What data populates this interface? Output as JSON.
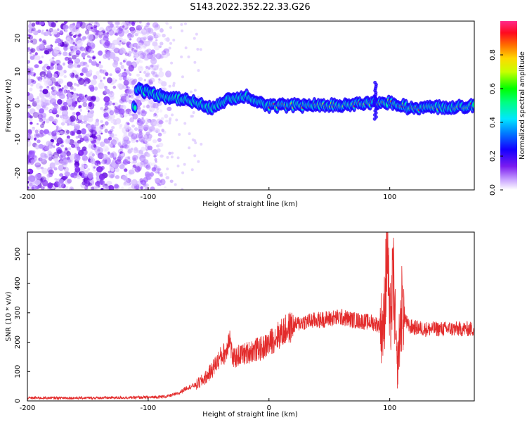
{
  "title": "S143.2022.352.22.33.G26",
  "colors": {
    "snr_line": "#e32b2b",
    "frame": "#000000"
  },
  "chart_data": [
    {
      "type": "heatmap",
      "title": "S143.2022.352.22.33.G26",
      "xlabel": "Height of straight line (km)",
      "ylabel": "Frequency (Hz)",
      "xlim": [
        -200,
        170
      ],
      "ylim": [
        -25,
        25
      ],
      "xticks": [
        -200,
        -100,
        0,
        100
      ],
      "yticks": [
        -20,
        -10,
        0,
        10,
        20
      ],
      "colorbar": {
        "label": "Normalized spectral amplitude",
        "range": [
          0.0,
          1.0
        ],
        "ticks": [
          "0.0",
          "0.2",
          "0.4",
          "0.6",
          "0.8"
        ],
        "colors": [
          "#ffffff",
          "#a04dff",
          "#4b00d6",
          "#0000ff",
          "#00a0ff",
          "#00ffd0",
          "#00ff00",
          "#ffff00",
          "#ff8000",
          "#ff0000",
          "#ff2a8a"
        ]
      },
      "features": {
        "noise_region_x": [
          -200,
          -80
        ],
        "ridge_center_hz": [
          [
            -110,
            5
          ],
          [
            -90,
            3
          ],
          [
            -60,
            1
          ],
          [
            -50,
            -1
          ],
          [
            -40,
            1
          ],
          [
            -20,
            3
          ],
          [
            0,
            0
          ],
          [
            50,
            0
          ],
          [
            100,
            1
          ],
          [
            120,
            -1
          ],
          [
            170,
            0
          ]
        ]
      }
    },
    {
      "type": "line",
      "xlabel": "Height of straight line (km)",
      "ylabel": "SNR (10 * v/v)",
      "xlim": [
        -200,
        170
      ],
      "ylim": [
        0,
        575
      ],
      "xticks": [
        -200,
        -100,
        0,
        100
      ],
      "yticks": [
        0,
        100,
        200,
        300,
        400,
        500
      ],
      "series": [
        {
          "name": "SNR",
          "x": [
            -200,
            -150,
            -100,
            -85,
            -75,
            -68,
            -60,
            -55,
            -50,
            -45,
            -40,
            -35,
            -33,
            -30,
            -25,
            -20,
            -15,
            -10,
            -5,
            0,
            5,
            10,
            15,
            20,
            25,
            30,
            40,
            50,
            60,
            70,
            80,
            85,
            90,
            95,
            98,
            100,
            103,
            106,
            110,
            115,
            120,
            130,
            140,
            150,
            160,
            170
          ],
          "values": [
            10,
            10,
            12,
            15,
            25,
            45,
            55,
            70,
            90,
            120,
            150,
            170,
            230,
            140,
            155,
            160,
            170,
            175,
            180,
            195,
            215,
            230,
            245,
            255,
            265,
            270,
            275,
            280,
            285,
            275,
            270,
            268,
            260,
            250,
            560,
            240,
            420,
            100,
            320,
            255,
            250,
            245,
            245,
            245,
            245,
            245
          ]
        }
      ]
    }
  ]
}
